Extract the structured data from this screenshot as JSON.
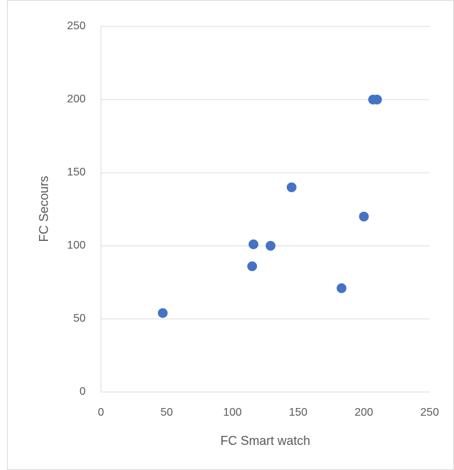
{
  "chart_data": {
    "type": "scatter",
    "x_label": "FC Smart watch",
    "y_label": "FC Secours",
    "x": [
      47,
      115,
      116,
      129,
      145,
      183,
      200,
      207,
      210
    ],
    "values": [
      54,
      86,
      101,
      100,
      140,
      71,
      120,
      200,
      200
    ],
    "color": "#4472c4",
    "xlim": [
      0,
      250
    ],
    "xticks": [
      0,
      50,
      100,
      150,
      200,
      250
    ],
    "ylim": [
      0,
      250
    ],
    "yticks": [
      0,
      50,
      100,
      150,
      200,
      250
    ],
    "grid": true
  }
}
